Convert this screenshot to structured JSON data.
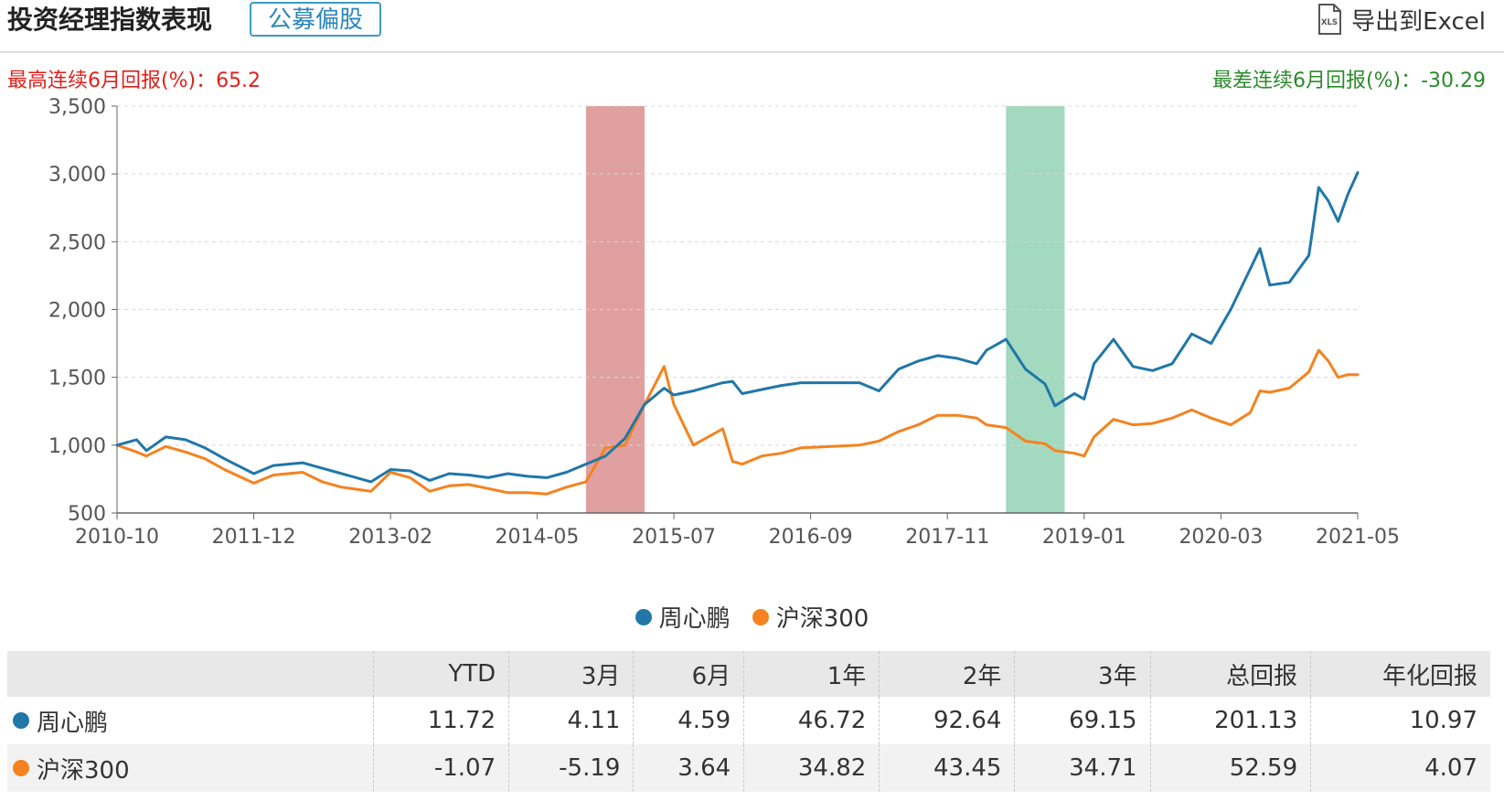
{
  "header": {
    "title": "投资经理指数表现",
    "tag": "公募偏股",
    "export_label": "导出到Excel",
    "export_icon": "xls-file-icon",
    "export_icon_text": "XLS"
  },
  "stats": {
    "best_6m": "最高连续6月回报(%)：65.2",
    "worst_6m": "最差连续6月回报(%)：-30.29"
  },
  "colors": {
    "series1": "#2077a8",
    "series2": "#f5821f",
    "best_band": "#e0a0a0",
    "worst_band": "#a3d9be",
    "best_text": "#e0211c",
    "worst_text": "#2c8a2c"
  },
  "legend": [
    {
      "label": "周心鹏",
      "color": "#2077a8"
    },
    {
      "label": "沪深300",
      "color": "#f5821f"
    }
  ],
  "table": {
    "headers": [
      "",
      "YTD",
      "3月",
      "6月",
      "1年",
      "2年",
      "3年",
      "总回报",
      "年化回报"
    ],
    "rows": [
      {
        "name": "周心鹏",
        "color": "#2077a8",
        "values": [
          "11.72",
          "4.11",
          "4.59",
          "46.72",
          "92.64",
          "69.15",
          "201.13",
          "10.97"
        ]
      },
      {
        "name": "沪深300",
        "color": "#f5821f",
        "values": [
          "-1.07",
          "-5.19",
          "3.64",
          "34.82",
          "43.45",
          "34.71",
          "52.59",
          "4.07"
        ]
      }
    ]
  },
  "chart_data": {
    "type": "line",
    "ylim": [
      500,
      3500
    ],
    "yticks": [
      500,
      1000,
      1500,
      2000,
      2500,
      3000,
      3500
    ],
    "ytick_labels": [
      "500",
      "1,000",
      "1,500",
      "2,000",
      "2,500",
      "3,000",
      "3,500"
    ],
    "xlim": [
      "2010-10",
      "2021-05"
    ],
    "xticks": [
      "2010-10",
      "2011-12",
      "2013-02",
      "2014-05",
      "2015-07",
      "2016-09",
      "2017-11",
      "2019-01",
      "2020-03",
      "2021-05"
    ],
    "grid": true,
    "legend_position": "bottom",
    "bands": [
      {
        "name": "最高连续6月回报",
        "start": "2014-10",
        "end": "2015-04",
        "color": "#e0a0a0"
      },
      {
        "name": "最差连续6月回报",
        "start": "2018-05",
        "end": "2018-11",
        "color": "#a3d9be"
      }
    ],
    "series": [
      {
        "name": "周心鹏",
        "color": "#2077a8",
        "points": [
          [
            "2010-10",
            1000
          ],
          [
            "2010-12",
            1040
          ],
          [
            "2011-01",
            960
          ],
          [
            "2011-03",
            1060
          ],
          [
            "2011-05",
            1040
          ],
          [
            "2011-07",
            980
          ],
          [
            "2011-09",
            900
          ],
          [
            "2011-12",
            790
          ],
          [
            "2012-02",
            850
          ],
          [
            "2012-05",
            870
          ],
          [
            "2012-07",
            830
          ],
          [
            "2012-09",
            790
          ],
          [
            "2012-12",
            730
          ],
          [
            "2013-02",
            820
          ],
          [
            "2013-04",
            810
          ],
          [
            "2013-06",
            740
          ],
          [
            "2013-08",
            790
          ],
          [
            "2013-10",
            780
          ],
          [
            "2013-12",
            760
          ],
          [
            "2014-02",
            790
          ],
          [
            "2014-04",
            770
          ],
          [
            "2014-06",
            760
          ],
          [
            "2014-08",
            800
          ],
          [
            "2014-10",
            860
          ],
          [
            "2014-12",
            920
          ],
          [
            "2015-02",
            1050
          ],
          [
            "2015-04",
            1300
          ],
          [
            "2015-06",
            1420
          ],
          [
            "2015-07",
            1370
          ],
          [
            "2015-09",
            1400
          ],
          [
            "2015-12",
            1460
          ],
          [
            "2016-01",
            1470
          ],
          [
            "2016-02",
            1380
          ],
          [
            "2016-04",
            1410
          ],
          [
            "2016-06",
            1440
          ],
          [
            "2016-08",
            1460
          ],
          [
            "2017-02",
            1460
          ],
          [
            "2017-04",
            1400
          ],
          [
            "2017-06",
            1560
          ],
          [
            "2017-08",
            1620
          ],
          [
            "2017-10",
            1660
          ],
          [
            "2017-12",
            1640
          ],
          [
            "2018-02",
            1600
          ],
          [
            "2018-03",
            1700
          ],
          [
            "2018-05",
            1780
          ],
          [
            "2018-07",
            1560
          ],
          [
            "2018-09",
            1450
          ],
          [
            "2018-10",
            1290
          ],
          [
            "2018-12",
            1380
          ],
          [
            "2019-01",
            1340
          ],
          [
            "2019-02",
            1600
          ],
          [
            "2019-04",
            1780
          ],
          [
            "2019-06",
            1580
          ],
          [
            "2019-08",
            1550
          ],
          [
            "2019-10",
            1600
          ],
          [
            "2019-12",
            1820
          ],
          [
            "2020-02",
            1750
          ],
          [
            "2020-04",
            2000
          ],
          [
            "2020-06",
            2300
          ],
          [
            "2020-07",
            2450
          ],
          [
            "2020-08",
            2180
          ],
          [
            "2020-10",
            2200
          ],
          [
            "2020-12",
            2400
          ],
          [
            "2021-01",
            2900
          ],
          [
            "2021-02",
            2800
          ],
          [
            "2021-03",
            2650
          ],
          [
            "2021-04",
            2850
          ],
          [
            "2021-05",
            3010
          ]
        ]
      },
      {
        "name": "沪深300",
        "color": "#f5821f",
        "points": [
          [
            "2010-10",
            1000
          ],
          [
            "2010-12",
            950
          ],
          [
            "2011-01",
            920
          ],
          [
            "2011-03",
            990
          ],
          [
            "2011-05",
            950
          ],
          [
            "2011-07",
            900
          ],
          [
            "2011-09",
            820
          ],
          [
            "2011-12",
            720
          ],
          [
            "2012-02",
            780
          ],
          [
            "2012-05",
            800
          ],
          [
            "2012-07",
            730
          ],
          [
            "2012-09",
            690
          ],
          [
            "2012-12",
            660
          ],
          [
            "2013-02",
            800
          ],
          [
            "2013-04",
            760
          ],
          [
            "2013-06",
            660
          ],
          [
            "2013-08",
            700
          ],
          [
            "2013-10",
            710
          ],
          [
            "2013-12",
            680
          ],
          [
            "2014-02",
            650
          ],
          [
            "2014-04",
            650
          ],
          [
            "2014-06",
            640
          ],
          [
            "2014-08",
            690
          ],
          [
            "2014-10",
            730
          ],
          [
            "2014-12",
            980
          ],
          [
            "2015-02",
            1000
          ],
          [
            "2015-04",
            1300
          ],
          [
            "2015-06",
            1580
          ],
          [
            "2015-07",
            1300
          ],
          [
            "2015-09",
            1000
          ],
          [
            "2015-12",
            1120
          ],
          [
            "2016-01",
            880
          ],
          [
            "2016-02",
            860
          ],
          [
            "2016-04",
            920
          ],
          [
            "2016-06",
            940
          ],
          [
            "2016-08",
            980
          ],
          [
            "2017-02",
            1000
          ],
          [
            "2017-04",
            1030
          ],
          [
            "2017-06",
            1100
          ],
          [
            "2017-08",
            1150
          ],
          [
            "2017-10",
            1220
          ],
          [
            "2017-12",
            1220
          ],
          [
            "2018-02",
            1200
          ],
          [
            "2018-03",
            1150
          ],
          [
            "2018-05",
            1130
          ],
          [
            "2018-07",
            1030
          ],
          [
            "2018-09",
            1010
          ],
          [
            "2018-10",
            960
          ],
          [
            "2018-12",
            940
          ],
          [
            "2019-01",
            920
          ],
          [
            "2019-02",
            1060
          ],
          [
            "2019-04",
            1190
          ],
          [
            "2019-06",
            1150
          ],
          [
            "2019-08",
            1160
          ],
          [
            "2019-10",
            1200
          ],
          [
            "2019-12",
            1260
          ],
          [
            "2020-02",
            1200
          ],
          [
            "2020-04",
            1150
          ],
          [
            "2020-06",
            1240
          ],
          [
            "2020-07",
            1400
          ],
          [
            "2020-08",
            1390
          ],
          [
            "2020-10",
            1420
          ],
          [
            "2020-12",
            1540
          ],
          [
            "2021-01",
            1700
          ],
          [
            "2021-02",
            1620
          ],
          [
            "2021-03",
            1500
          ],
          [
            "2021-04",
            1520
          ],
          [
            "2021-05",
            1520
          ]
        ]
      }
    ]
  }
}
